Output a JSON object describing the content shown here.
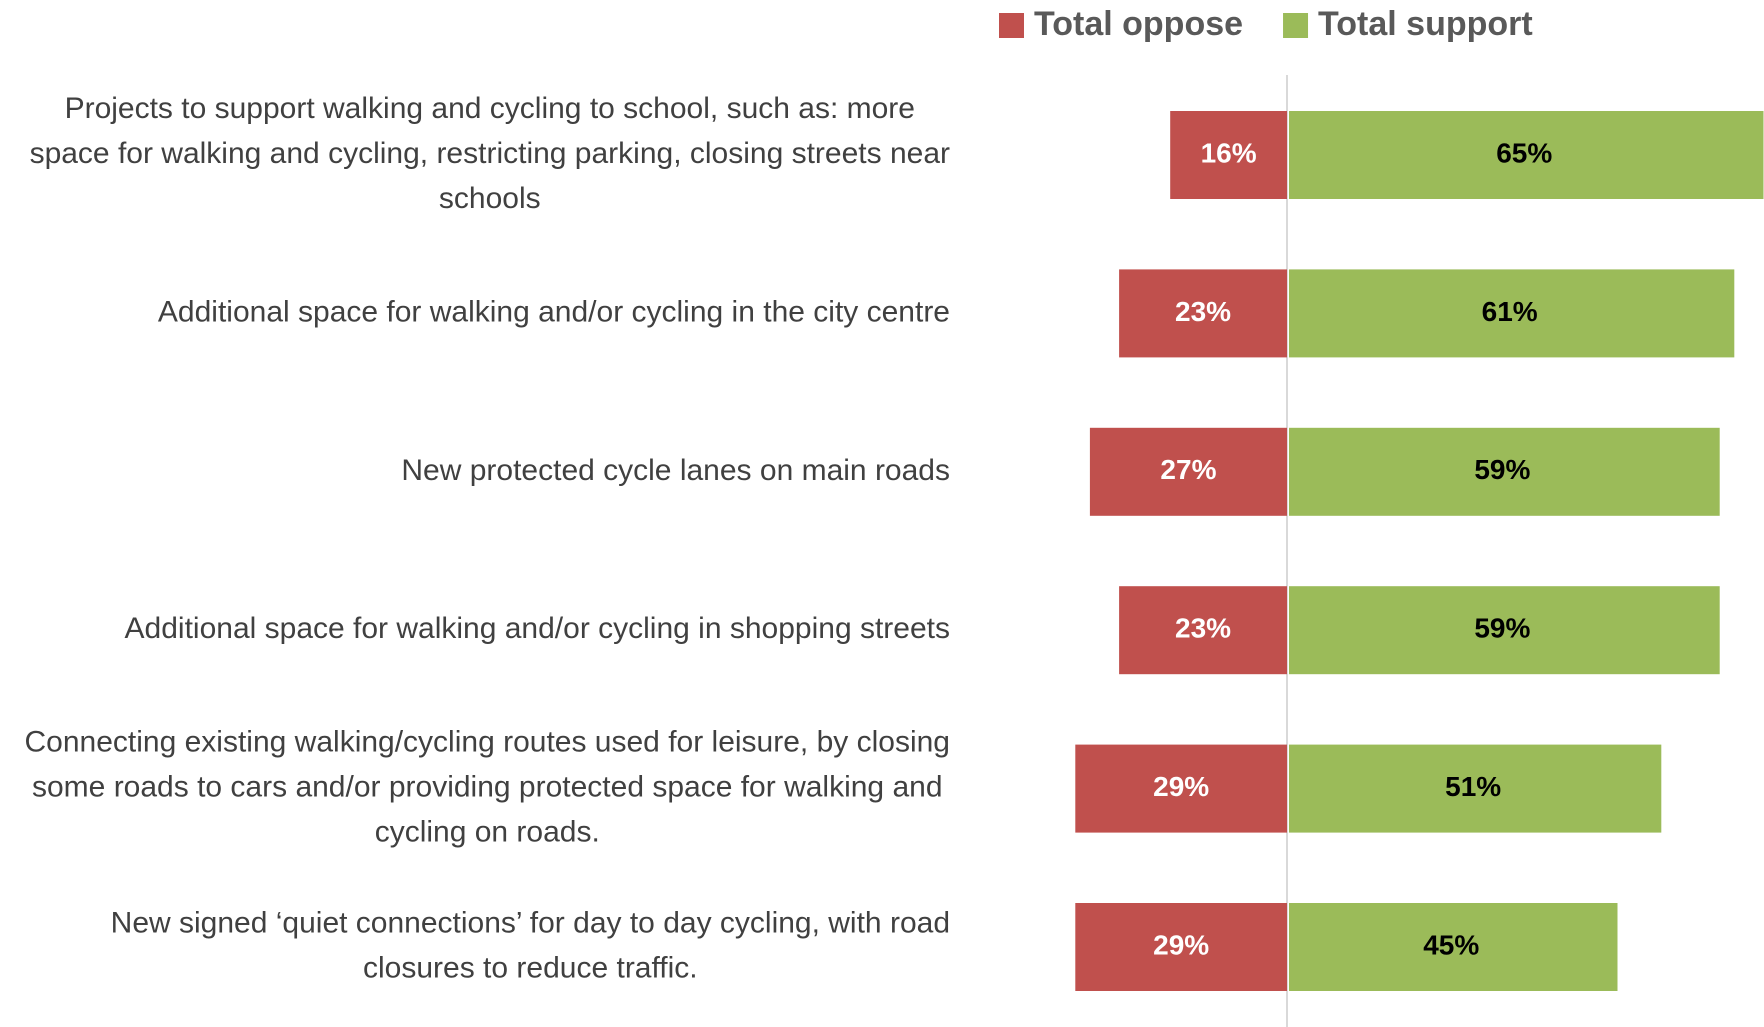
{
  "chart_data": {
    "type": "diverging_bar",
    "categories": [
      "Projects to support walking and cycling to school, such as: more space for walking and cycling, restricting parking, closing streets near schools",
      "Additional space for walking and/or cycling in the city centre",
      "New protected cycle lanes on main roads",
      "Additional space for walking and/or cycling in shopping streets",
      "Connecting existing walking/cycling routes used for leisure, by closing some roads to cars and/or providing protected space for walking and cycling on roads.",
      "New signed ‘quiet connections’ for day to day cycling, with road closures to reduce traffic."
    ],
    "series": [
      {
        "name": "Total oppose",
        "color": "#c0504d",
        "values": [
          16,
          23,
          27,
          23,
          29,
          29
        ],
        "value_labels": [
          "16%",
          "23%",
          "27%",
          "23%",
          "29%",
          "29%"
        ]
      },
      {
        "name": "Total support",
        "color": "#9bbb59",
        "values": [
          65,
          61,
          59,
          59,
          51,
          45
        ],
        "value_labels": [
          "65%",
          "61%",
          "59%",
          "59%",
          "51%",
          "45%"
        ]
      }
    ]
  }
}
